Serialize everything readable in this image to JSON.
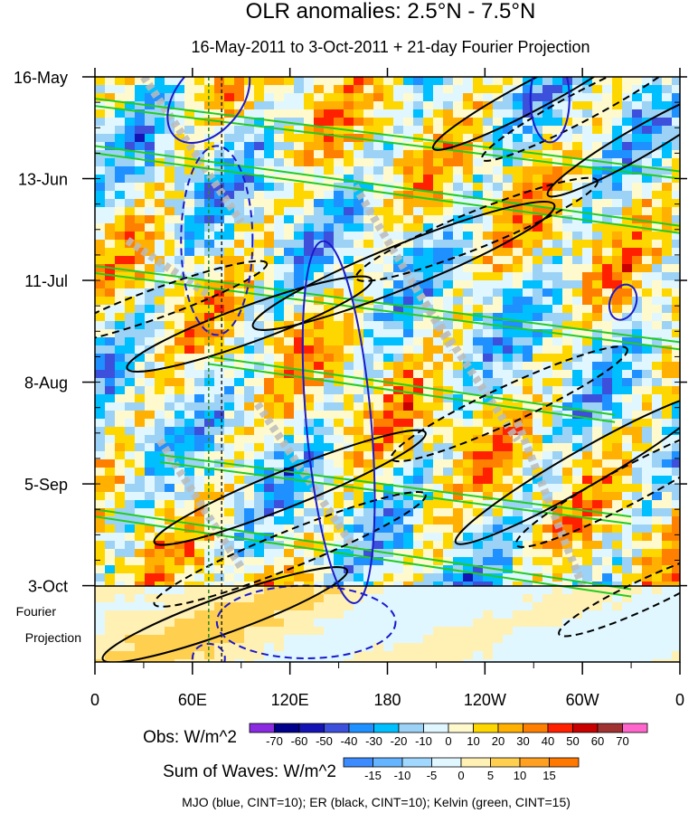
{
  "chart_data": {
    "type": "heatmap",
    "title": "OLR anomalies: 2.5°N - 7.5°N",
    "subtitle": "16-May-2011 to 3-Oct-2011 + 21-day Fourier Projection",
    "x_ticks": [
      "0",
      "60E",
      "120E",
      "180",
      "120W",
      "60W",
      "0"
    ],
    "x_tick_lons": [
      0,
      60,
      120,
      180,
      240,
      300,
      360
    ],
    "xlim": [
      0,
      360
    ],
    "y_ticks": [
      "16-May",
      "13-Jun",
      "11-Jul",
      "8-Aug",
      "5-Sep",
      "3-Oct"
    ],
    "y_tick_days": [
      0,
      28,
      56,
      84,
      112,
      140
    ],
    "ylim_days": [
      0,
      161
    ],
    "fourier_label": [
      "Fourier",
      "Projection"
    ],
    "dashed_lines_lon": [
      70,
      78
    ],
    "obs_colorbar": {
      "label": "Obs: W/m^2",
      "levels": [
        "-70",
        "-60",
        "-50",
        "-40",
        "-30",
        "-20",
        "-10",
        "0",
        "10",
        "20",
        "30",
        "40",
        "50",
        "60",
        "70"
      ],
      "colors": [
        "#8a2be2",
        "#00008b",
        "#1414b4",
        "#3c50dc",
        "#1e90ff",
        "#00bfff",
        "#9cd2f5",
        "#e0f7ff",
        "#fffacd",
        "#ffd700",
        "#ffb000",
        "#ff8000",
        "#ff2000",
        "#c80000",
        "#a03232",
        "#ff66cc"
      ]
    },
    "waves_colorbar": {
      "label": "Sum of Waves: W/m^2",
      "levels": [
        "-15",
        "-10",
        "-5",
        "0",
        "5",
        "10",
        "15"
      ],
      "colors": [
        "#3c8cff",
        "#64b4ff",
        "#a0d8ff",
        "#e0f7ff",
        "#fff0b4",
        "#ffd050",
        "#ffa020",
        "#ff7800"
      ]
    },
    "series": [
      {
        "name": "Kelvin (green, CINT=15)",
        "color": "#22cc22",
        "bands": [
          {
            "x1": 0,
            "d1": 6,
            "x2": 360,
            "d2": 26
          },
          {
            "x1": 0,
            "d1": 19,
            "x2": 360,
            "d2": 41
          },
          {
            "x1": 0,
            "d1": 52,
            "x2": 360,
            "d2": 73
          },
          {
            "x1": 70,
            "d1": 77,
            "x2": 320,
            "d2": 93
          },
          {
            "x1": 40,
            "d1": 104,
            "x2": 330,
            "d2": 121
          },
          {
            "x1": 0,
            "d1": 119,
            "x2": 330,
            "d2": 141
          }
        ]
      },
      {
        "name": "ER (black, CINT=10)",
        "color": "#000000",
        "loops": [
          {
            "lon": 270,
            "day": 5,
            "rx": 70,
            "ry": 4,
            "angle": -28
          },
          {
            "lon": 335,
            "day": 18,
            "rx": 65,
            "ry": 4,
            "angle": -30
          },
          {
            "lon": 190,
            "day": 52,
            "rx": 100,
            "ry": 6,
            "angle": -22
          },
          {
            "lon": 95,
            "day": 68,
            "rx": 80,
            "ry": 5,
            "angle": -20
          },
          {
            "lon": 300,
            "day": 108,
            "rx": 90,
            "ry": 5,
            "angle": -30
          },
          {
            "lon": 120,
            "day": 113,
            "rx": 90,
            "ry": 5,
            "angle": -22
          },
          {
            "lon": 80,
            "day": 148,
            "rx": 80,
            "ry": 5,
            "angle": -20
          }
        ],
        "dashed_loops": [
          {
            "lon": 300,
            "day": 8,
            "rx": 70,
            "ry": 4,
            "angle": -28
          },
          {
            "lon": 235,
            "day": 42,
            "rx": 80,
            "ry": 5,
            "angle": -22
          },
          {
            "lon": 40,
            "day": 62,
            "rx": 70,
            "ry": 4,
            "angle": -20
          },
          {
            "lon": 255,
            "day": 90,
            "rx": 80,
            "ry": 5,
            "angle": -25
          },
          {
            "lon": 330,
            "day": 112,
            "rx": 80,
            "ry": 5,
            "angle": -28
          },
          {
            "lon": 120,
            "day": 130,
            "rx": 90,
            "ry": 5,
            "angle": -22
          },
          {
            "lon": 340,
            "day": 142,
            "rx": 60,
            "ry": 4,
            "angle": -25
          }
        ]
      },
      {
        "name": "MJO (blue, CINT=10)",
        "color": "#1a1acc",
        "loops": [
          {
            "lon": 70,
            "day": 6,
            "rx": 20,
            "ry": 14,
            "angle": 40
          },
          {
            "lon": 150,
            "day": 95,
            "rx": 20,
            "ry": 50,
            "angle": -5
          },
          {
            "lon": 280,
            "day": 6,
            "rx": 12,
            "ry": 12,
            "angle": 0
          },
          {
            "lon": 325,
            "day": 62,
            "rx": 8,
            "ry": 5,
            "angle": 20
          }
        ],
        "dashed_loops": [
          {
            "lon": 75,
            "day": 45,
            "rx": 22,
            "ry": 26,
            "angle": 0
          },
          {
            "lon": 130,
            "day": 150,
            "rx": 55,
            "ry": 10,
            "angle": 0
          },
          {
            "lon": 70,
            "day": 160,
            "rx": 10,
            "ry": 4,
            "angle": 0
          }
        ]
      }
    ]
  },
  "footer": "MJO (blue, CINT=10); ER (black, CINT=10); Kelvin (green, CINT=15)"
}
